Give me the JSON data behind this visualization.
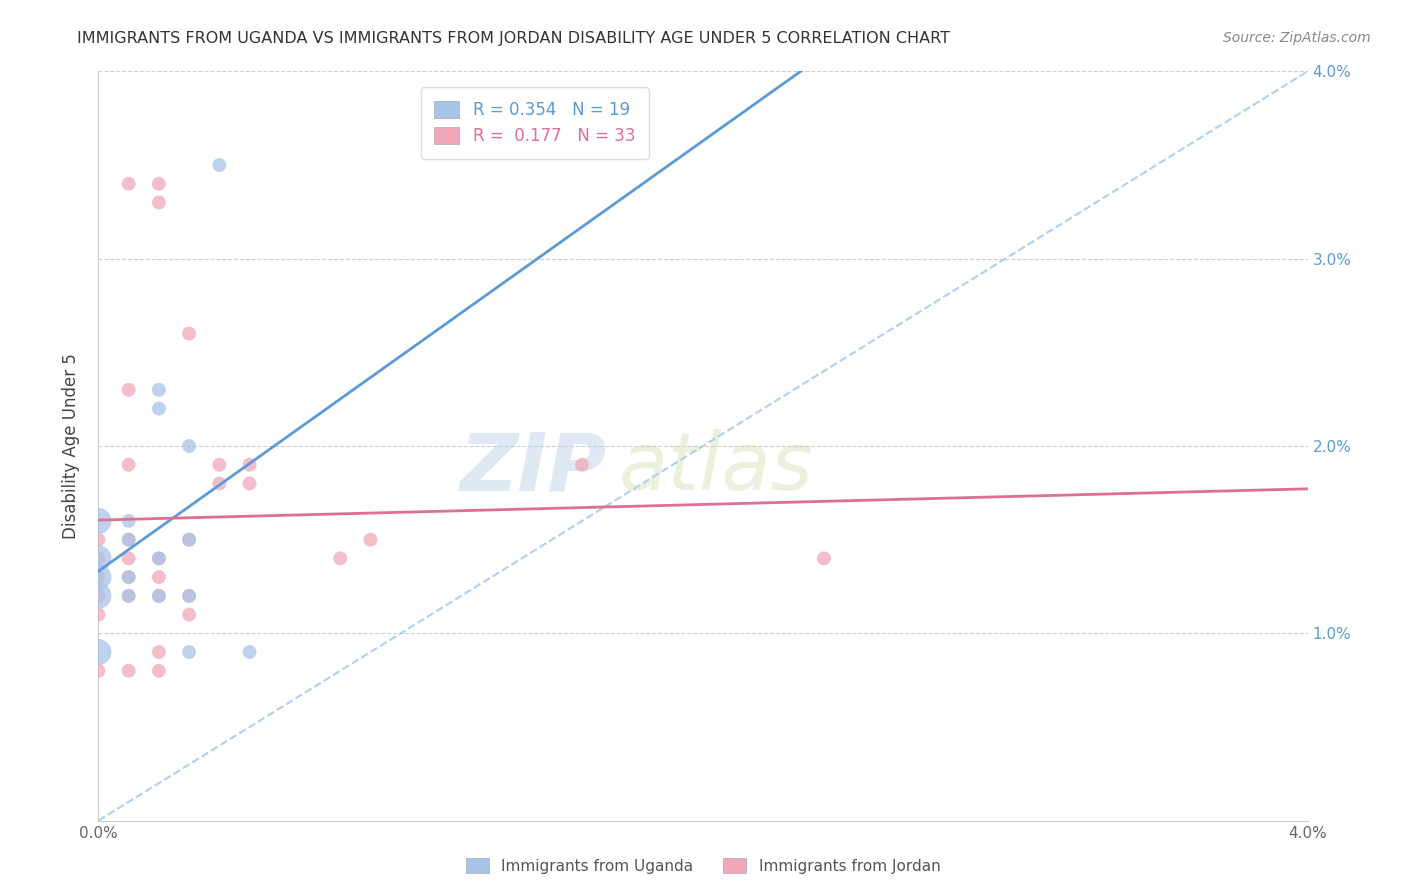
{
  "title": "IMMIGRANTS FROM UGANDA VS IMMIGRANTS FROM JORDAN DISABILITY AGE UNDER 5 CORRELATION CHART",
  "source": "Source: ZipAtlas.com",
  "ylabel": "Disability Age Under 5",
  "xlim": [
    0.0,
    0.04
  ],
  "ylim": [
    0.0,
    0.04
  ],
  "y_ticks_right": [
    0.01,
    0.02,
    0.03,
    0.04
  ],
  "y_tick_labels_right": [
    "1.0%",
    "2.0%",
    "3.0%",
    "4.0%"
  ],
  "uganda_color": "#a8c4e8",
  "jordan_color": "#f0a8b8",
  "uganda_line_color": "#5b9bd5",
  "jordan_line_color": "#e07090",
  "diagonal_color": "#b0d0f0",
  "watermark": "ZIPatlas",
  "uganda_points": [
    [
      0.0,
      0.009
    ],
    [
      0.0,
      0.012
    ],
    [
      0.0,
      0.013
    ],
    [
      0.0,
      0.014
    ],
    [
      0.0,
      0.016
    ],
    [
      0.001,
      0.012
    ],
    [
      0.001,
      0.013
    ],
    [
      0.001,
      0.015
    ],
    [
      0.001,
      0.016
    ],
    [
      0.002,
      0.012
    ],
    [
      0.002,
      0.014
    ],
    [
      0.002,
      0.022
    ],
    [
      0.002,
      0.023
    ],
    [
      0.003,
      0.015
    ],
    [
      0.003,
      0.02
    ],
    [
      0.003,
      0.012
    ],
    [
      0.003,
      0.009
    ],
    [
      0.004,
      0.035
    ],
    [
      0.005,
      0.009
    ]
  ],
  "jordan_points": [
    [
      0.0,
      0.008
    ],
    [
      0.0,
      0.011
    ],
    [
      0.0,
      0.012
    ],
    [
      0.0,
      0.013
    ],
    [
      0.0,
      0.014
    ],
    [
      0.0,
      0.015
    ],
    [
      0.001,
      0.008
    ],
    [
      0.001,
      0.012
    ],
    [
      0.001,
      0.013
    ],
    [
      0.001,
      0.014
    ],
    [
      0.001,
      0.015
    ],
    [
      0.001,
      0.019
    ],
    [
      0.001,
      0.023
    ],
    [
      0.001,
      0.034
    ],
    [
      0.002,
      0.008
    ],
    [
      0.002,
      0.009
    ],
    [
      0.002,
      0.012
    ],
    [
      0.002,
      0.013
    ],
    [
      0.002,
      0.014
    ],
    [
      0.002,
      0.033
    ],
    [
      0.002,
      0.034
    ],
    [
      0.003,
      0.011
    ],
    [
      0.003,
      0.015
    ],
    [
      0.003,
      0.026
    ],
    [
      0.003,
      0.012
    ],
    [
      0.004,
      0.018
    ],
    [
      0.004,
      0.019
    ],
    [
      0.005,
      0.018
    ],
    [
      0.005,
      0.019
    ],
    [
      0.008,
      0.014
    ],
    [
      0.009,
      0.015
    ],
    [
      0.016,
      0.019
    ],
    [
      0.024,
      0.014
    ]
  ],
  "legend_r_uganda": "R = 0.354",
  "legend_n_uganda": "N = 19",
  "legend_r_jordan": "R =  0.177",
  "legend_n_jordan": "N = 33",
  "bottom_legend_uganda": "Immigrants from Uganda",
  "bottom_legend_jordan": "Immigrants from Jordan"
}
